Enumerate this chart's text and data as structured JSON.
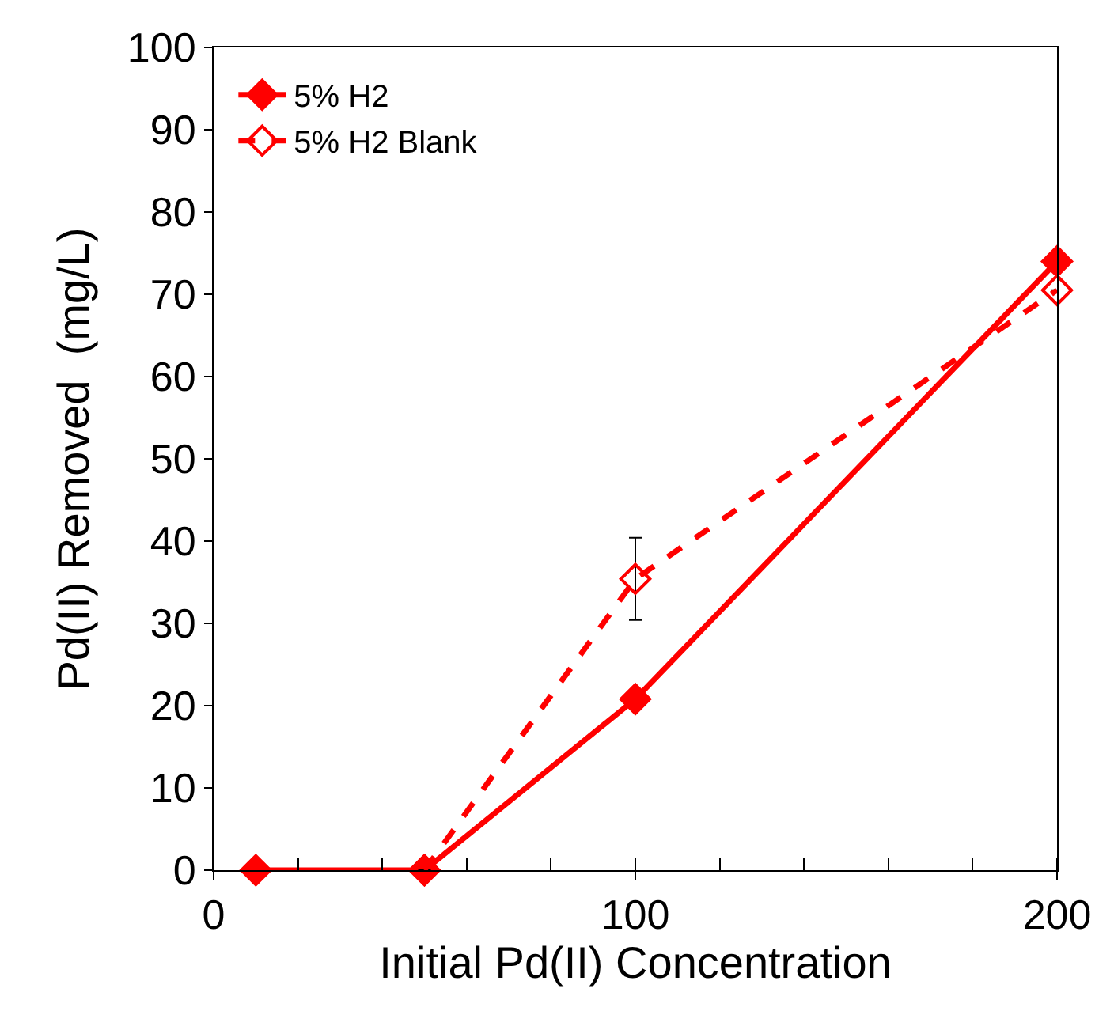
{
  "chart_data": {
    "type": "line",
    "xlabel": "Initial Pd(II) Concentration",
    "ylabel": "Pd(II) Removed  (mg/L)",
    "xlim": [
      0,
      200
    ],
    "xticks": [
      0,
      100,
      200
    ],
    "ylim": [
      0,
      100
    ],
    "yticks": [
      0,
      10,
      20,
      30,
      40,
      50,
      60,
      70,
      80,
      90,
      100
    ],
    "legend": "top left",
    "marker": "diamond",
    "series": [
      {
        "name": "5% H2",
        "color": "#ff0000",
        "x": [
          10,
          50,
          100,
          200
        ],
        "values": [
          0,
          0,
          20.8,
          74
        ],
        "line_style": "solid"
      },
      {
        "name": "5% H2 Blank",
        "color": "#ff0000",
        "x": [
          50,
          100,
          200
        ],
        "values": [
          0,
          35.4,
          70.5
        ],
        "line_style": "dashed",
        "errors": [
          null,
          5,
          null
        ]
      }
    ]
  }
}
